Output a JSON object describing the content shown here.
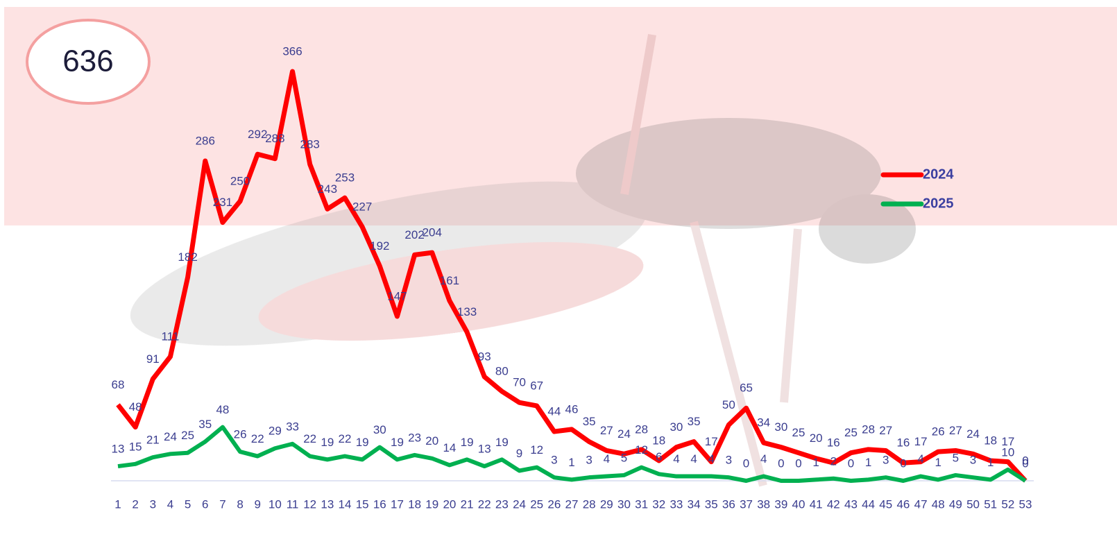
{
  "chart_data": {
    "type": "line",
    "badge": "636",
    "categories": [
      "1",
      "2",
      "3",
      "4",
      "5",
      "6",
      "7",
      "8",
      "9",
      "10",
      "11",
      "12",
      "13",
      "14",
      "15",
      "16",
      "17",
      "18",
      "19",
      "20",
      "21",
      "22",
      "23",
      "24",
      "25",
      "26",
      "27",
      "28",
      "29",
      "30",
      "31",
      "32",
      "33",
      "34",
      "35",
      "36",
      "37",
      "38",
      "39",
      "40",
      "41",
      "42",
      "43",
      "44",
      "45",
      "46",
      "47",
      "48",
      "49",
      "50",
      "51",
      "52",
      "53"
    ],
    "series": [
      {
        "name": "2024",
        "color": "#ff0000",
        "values": [
          68,
          48,
          91,
          111,
          182,
          286,
          231,
          250,
          292,
          288,
          366,
          283,
          243,
          253,
          227,
          192,
          147,
          202,
          204,
          161,
          133,
          93,
          80,
          70,
          67,
          44,
          46,
          35,
          27,
          24,
          28,
          18,
          30,
          35,
          17,
          50,
          65,
          34,
          30,
          25,
          20,
          16,
          25,
          28,
          27,
          16,
          17,
          26,
          27,
          24,
          18,
          17,
          0
        ]
      },
      {
        "name": "2025",
        "color": "#00b050",
        "values": [
          13,
          15,
          21,
          24,
          25,
          35,
          48,
          26,
          22,
          29,
          33,
          22,
          19,
          22,
          19,
          30,
          19,
          23,
          20,
          14,
          19,
          13,
          19,
          9,
          12,
          3,
          1,
          3,
          4,
          5,
          12,
          6,
          4,
          4,
          4,
          3,
          0,
          4,
          0,
          0,
          1,
          2,
          0,
          1,
          3,
          0,
          4,
          1,
          5,
          3,
          1,
          10,
          0
        ]
      }
    ],
    "ylim": [
      0,
      366
    ],
    "legend": "right"
  }
}
